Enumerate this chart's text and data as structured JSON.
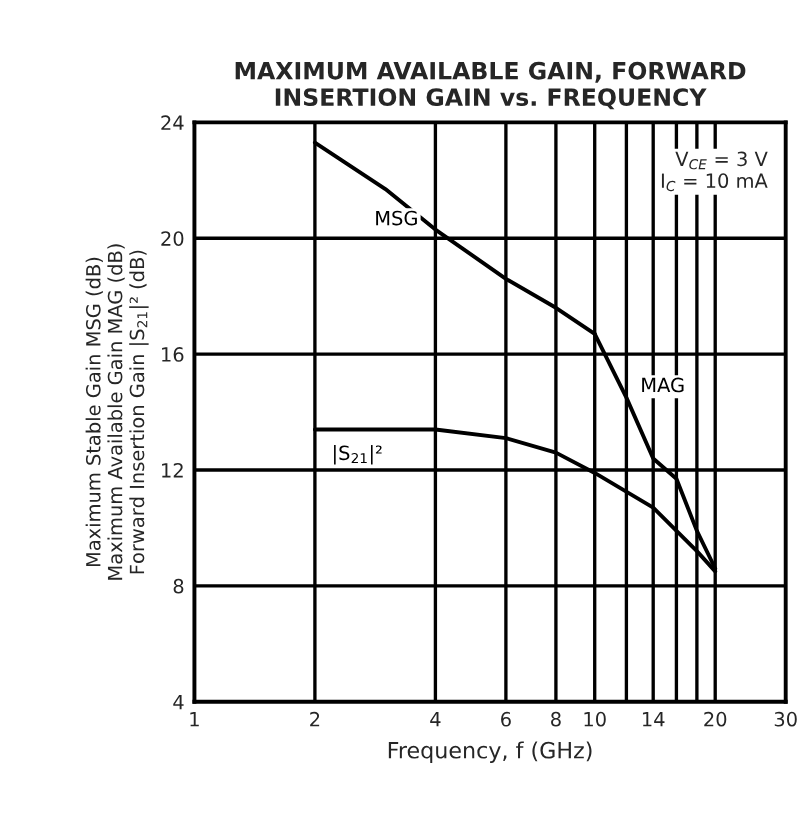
{
  "chart_data": {
    "type": "line",
    "title": "MAXIMUM AVAILABLE GAIN, FORWARD\nINSERTION GAIN vs. FREQUENCY",
    "xlabel": "Frequency, f (GHz)",
    "ylabel": "Maximum Stable Gain MSG (dB)\nMaximum Available Gain MAG (dB)\nForward Insertion Gain |S$_{21}$|² (dB)",
    "annotations": [
      "V$_{CE}$ = 3 V\nI$_{C}$ = 10 mA"
    ],
    "log": "x",
    "xlim": [
      1,
      30
    ],
    "xticks": [
      1,
      2,
      4,
      6,
      8,
      10,
      {
        "value": 12,
        "label": null
      },
      14,
      {
        "value": 16,
        "label": null
      },
      {
        "value": 18,
        "label": null
      },
      20,
      30
    ],
    "ylim": [
      4,
      24
    ],
    "yticks": [
      4,
      8,
      12,
      16,
      20,
      24
    ],
    "grid": true,
    "legend": false,
    "marker": "none",
    "line_style": "solid",
    "series": [
      {
        "name": "MSG",
        "color": "#000000",
        "x": [
          2,
          3,
          4,
          6,
          8,
          10
        ],
        "values": [
          23.3,
          21.7,
          20.3,
          18.6,
          17.6,
          16.7
        ]
      },
      {
        "name": "MAG",
        "color": "#000000",
        "x": [
          10,
          12,
          14,
          16,
          18,
          20
        ],
        "values": [
          16.7,
          14.5,
          12.4,
          11.7,
          9.9,
          8.6
        ]
      },
      {
        "name": "|S$_{21}$|²",
        "color": "#000000",
        "x": [
          2,
          4,
          6,
          8,
          10,
          14,
          18,
          20
        ],
        "values": [
          13.4,
          13.4,
          13.1,
          12.6,
          11.9,
          10.7,
          9.2,
          8.5
        ]
      }
    ]
  }
}
